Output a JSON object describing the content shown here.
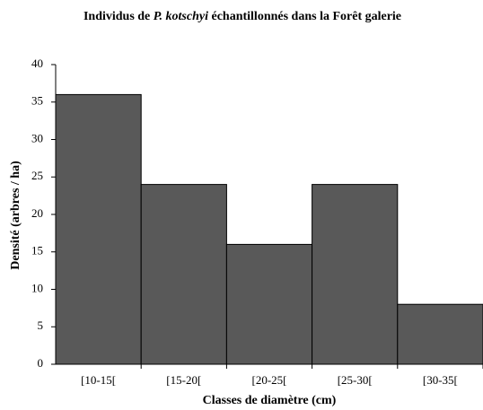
{
  "chart_data": {
    "type": "bar",
    "title": [
      "Individus  de ",
      "P. kotschyi",
      " échantillonnés  dans la Forêt galerie"
    ],
    "x_label": "Classes de diamètre  (cm)",
    "y_label": "Densité (arbres / ha)",
    "categories": [
      "[10-15[",
      "[15-20[",
      "[20-25[",
      "[25-30[",
      "[30-35["
    ],
    "values": [
      36,
      24,
      16,
      24,
      8
    ],
    "color": "#595959",
    "ylim": [
      0,
      40
    ],
    "yticks": [
      0,
      5,
      10,
      15,
      20,
      25,
      30,
      35,
      40
    ],
    "grid": false
  }
}
